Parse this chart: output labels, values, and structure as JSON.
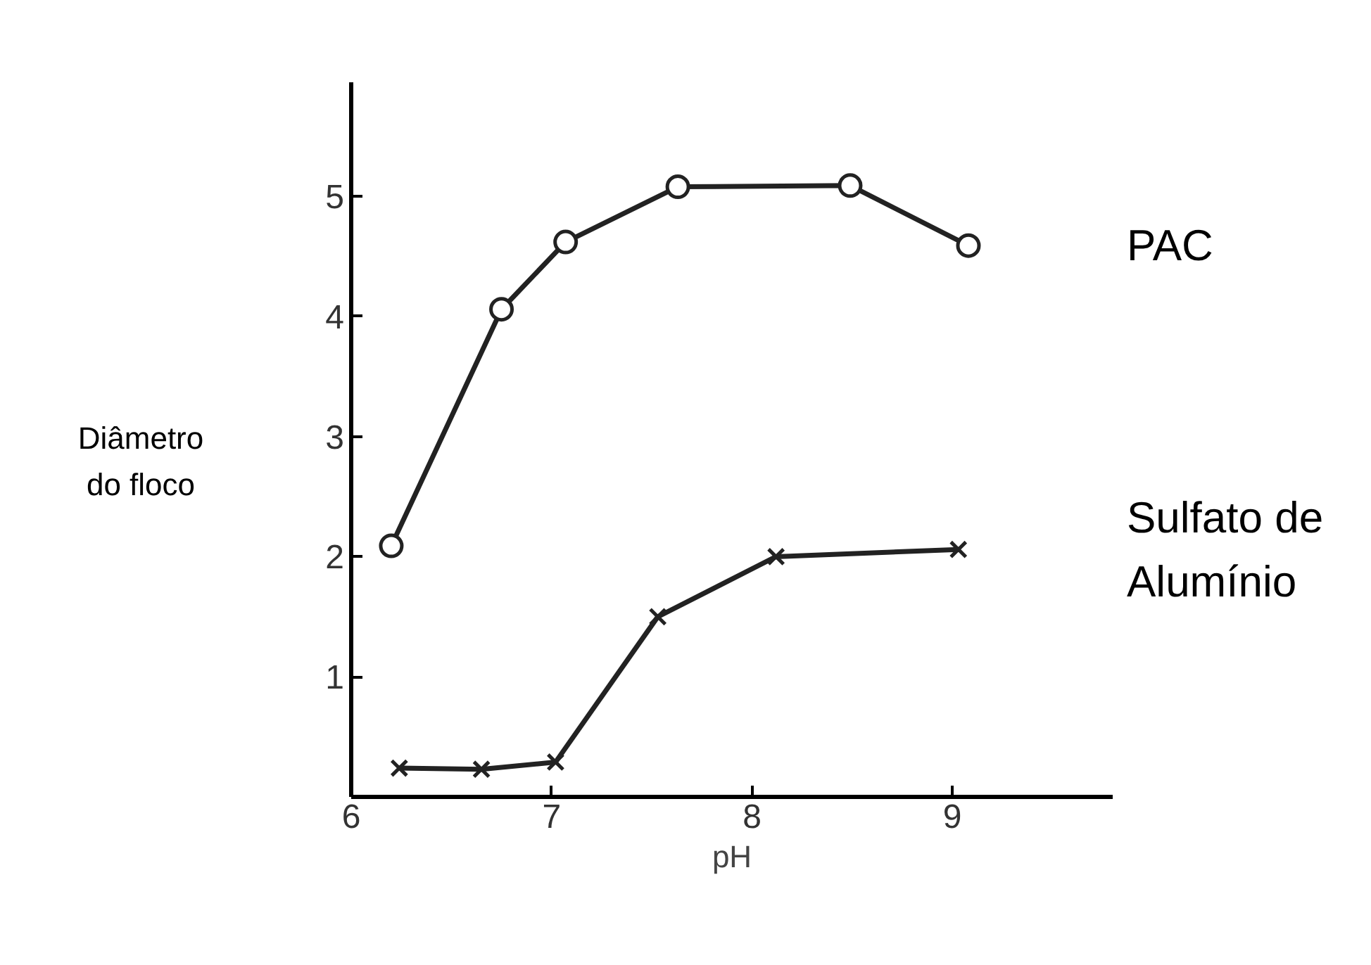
{
  "chart_data": {
    "type": "line",
    "xlabel": "pH",
    "ylabel": "Diâmetro do floco",
    "xlim": [
      6,
      9.8
    ],
    "ylim": [
      0,
      5.95
    ],
    "xticks": [
      6,
      7,
      8,
      9
    ],
    "yticks": [
      1,
      2,
      3,
      4,
      5
    ],
    "grid": false,
    "series": [
      {
        "name": "PAC",
        "color": "#222222",
        "marker": "circle",
        "x": [
          6.2,
          6.75,
          7.07,
          7.63,
          8.49,
          9.08
        ],
        "values": [
          2.09,
          4.06,
          4.62,
          5.08,
          5.09,
          4.59
        ]
      },
      {
        "name": "Sulfato de Alumínio",
        "color": "#222222",
        "marker": "cross",
        "x": [
          6.24,
          6.65,
          7.02,
          7.53,
          8.12,
          9.03
        ],
        "values": [
          0.24,
          0.23,
          0.29,
          1.5,
          2.0,
          2.06
        ]
      }
    ]
  }
}
